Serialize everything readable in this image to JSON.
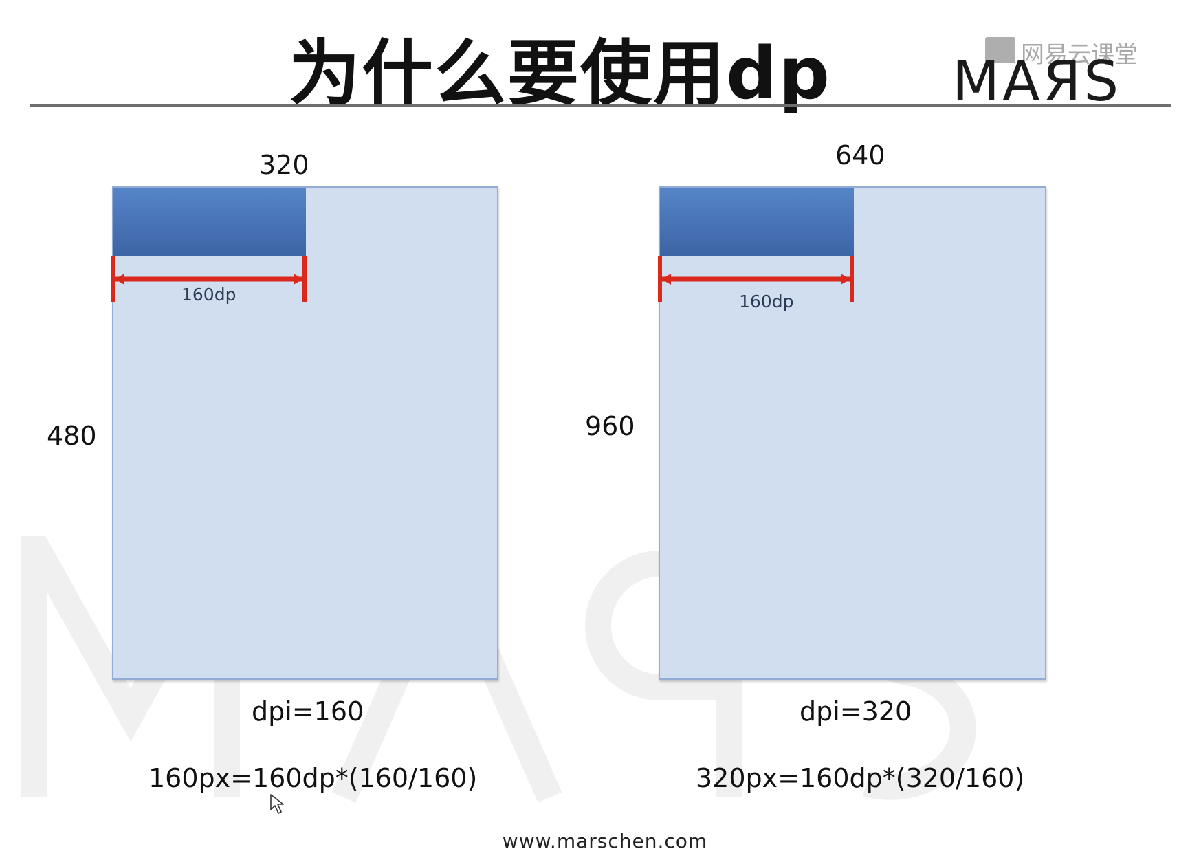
{
  "slide": {
    "title": "为什么要使用dp",
    "logo": {
      "brand": "MAЯS",
      "provider": "网易云课堂"
    },
    "footer": "www.marschen.com",
    "colors": {
      "screen_fill": "#d1def0",
      "screen_border": "#93acd4",
      "bar_fill": "#4472c4",
      "measure_line": "#d9291c"
    }
  },
  "screens": {
    "left": {
      "width_label": "320",
      "height_label": "480",
      "dp_label": "160dp",
      "dpi_label": "dpi=160",
      "formula": "160px=160dp*(160/160)",
      "bar_width_fraction": 0.5
    },
    "right": {
      "width_label": "640",
      "height_label": "960",
      "dp_label": "160dp",
      "dpi_label": "dpi=320",
      "formula": "320px=160dp*(320/160)",
      "bar_width_fraction": 0.5
    }
  }
}
